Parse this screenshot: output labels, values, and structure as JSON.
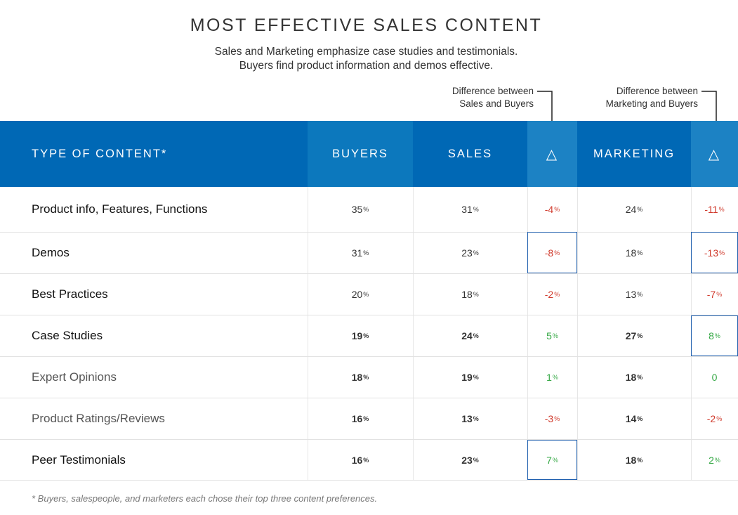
{
  "title": "MOST EFFECTIVE SALES CONTENT",
  "subtitle": {
    "line1": "Sales and Marketing emphasize case studies and testimonials.",
    "line2": "Buyers find product information and demos effective."
  },
  "annotations": {
    "sales_line1": "Difference between",
    "sales_line2": "Sales and Buyers",
    "marketing_line1": "Difference between",
    "marketing_line2": "Marketing and Buyers"
  },
  "footnote": "* Buyers, salespeople, and marketers each chose their top three content preferences.",
  "colors": {
    "header": "#0068b5",
    "negative": "#d03a2c",
    "positive": "#35a845",
    "highlight_box": "#1f5fae"
  },
  "chart_data": {
    "type": "table",
    "columns": [
      "TYPE OF CONTENT*",
      "BUYERS",
      "SALES",
      "△",
      "MARKETING",
      "△"
    ],
    "rows": [
      {
        "name": "Product info, Features, Functions",
        "buyers": "35",
        "sales": "31",
        "sales_diff": "-4",
        "marketing": "24",
        "marketing_diff": "-11",
        "sales_diff_boxed": false,
        "marketing_diff_boxed": false
      },
      {
        "name": "Demos",
        "buyers": "31",
        "sales": "23",
        "sales_diff": "-8",
        "marketing": "18",
        "marketing_diff": "-13",
        "sales_diff_boxed": true,
        "marketing_diff_boxed": true
      },
      {
        "name": "Best Practices",
        "buyers": "20",
        "sales": "18",
        "sales_diff": "-2",
        "marketing": "13",
        "marketing_diff": "-7",
        "sales_diff_boxed": false,
        "marketing_diff_boxed": false
      },
      {
        "name": "Case Studies",
        "buyers": "19",
        "sales": "24",
        "sales_diff": "5",
        "marketing": "27",
        "marketing_diff": "8",
        "sales_diff_boxed": false,
        "marketing_diff_boxed": true
      },
      {
        "name": "Expert Opinions",
        "buyers": "18",
        "sales": "19",
        "sales_diff": "1",
        "marketing": "18",
        "marketing_diff": "0",
        "sales_diff_boxed": false,
        "marketing_diff_boxed": false
      },
      {
        "name": "Product Ratings/Reviews",
        "buyers": "16",
        "sales": "13",
        "sales_diff": "-3",
        "marketing": "14",
        "marketing_diff": "-2",
        "sales_diff_boxed": false,
        "marketing_diff_boxed": false
      },
      {
        "name": "Peer Testimonials",
        "buyers": "16",
        "sales": "23",
        "sales_diff": "7",
        "marketing": "18",
        "marketing_diff": "2",
        "sales_diff_boxed": true,
        "marketing_diff_boxed": false
      }
    ]
  }
}
